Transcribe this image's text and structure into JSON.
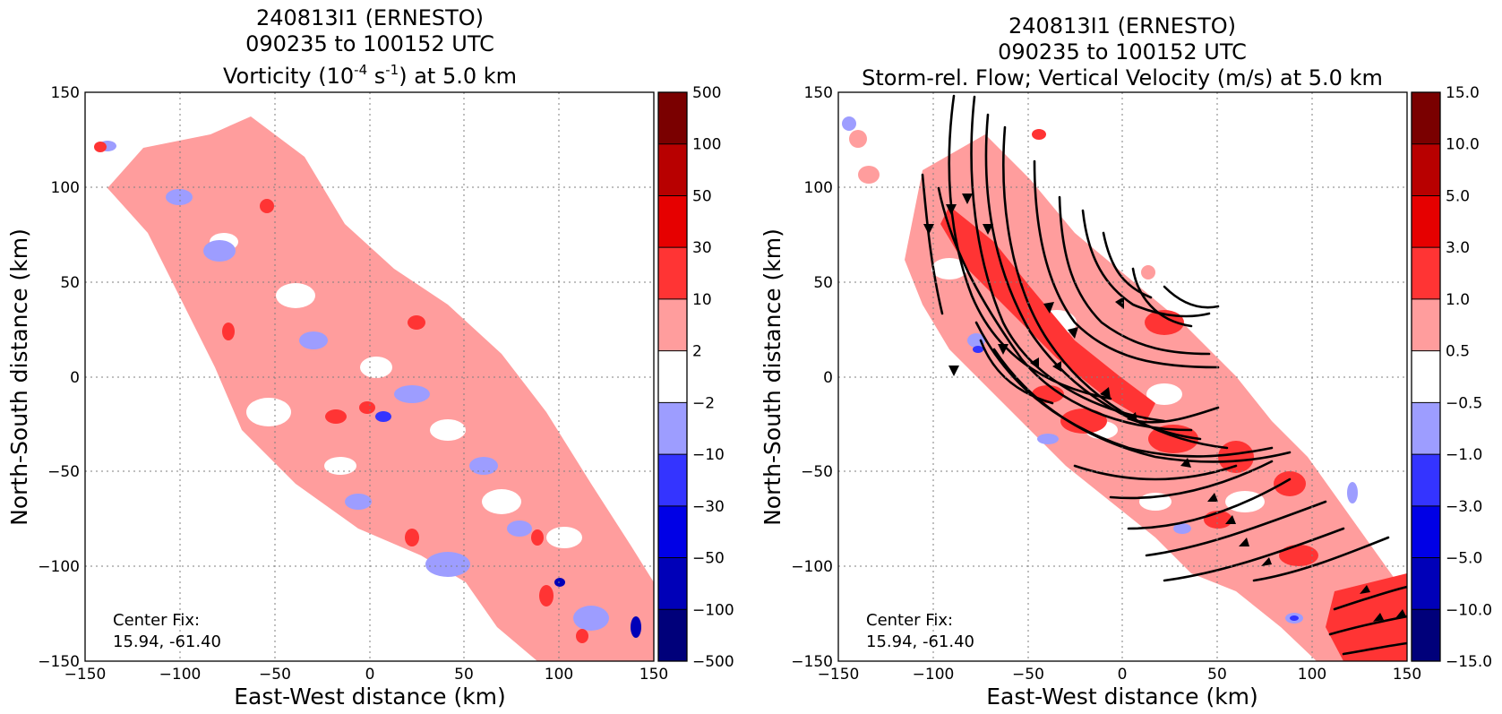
{
  "chart_data": [
    {
      "type": "heatmap",
      "title_lines": [
        "240813I1 (ERNESTO)",
        "090235 to 100152 UTC"
      ],
      "title_var": {
        "pre": "Vorticity (10",
        "sup1": "-4",
        "mid": " s",
        "sup2": "-1",
        "post": ") at 5.0 km"
      },
      "xlabel": "East-West distance (km)",
      "ylabel": "North-South distance (km)",
      "xlim": [
        -150,
        150
      ],
      "ylim": [
        -150,
        150
      ],
      "xticks": [
        "−150",
        "−100",
        "−50",
        "0",
        "50",
        "100",
        "150"
      ],
      "yticks": [
        "150",
        "100",
        "50",
        "0",
        "−50",
        "−100",
        "−150"
      ],
      "grid": true,
      "colorbar": {
        "labels": [
          "500",
          "100",
          "50",
          "30",
          "10",
          "2",
          "−2",
          "−10",
          "−30",
          "−50",
          "−100",
          "−500"
        ],
        "colors": [
          "#7a0000",
          "#b80000",
          "#e60000",
          "#ff3434",
          "#ff9d9d",
          "#ffffff",
          "#9d9dff",
          "#3434ff",
          "#0000e6",
          "#0000b8",
          "#00007a"
        ]
      },
      "annotation": [
        "Center Fix:",
        "15.94, -61.40"
      ]
    },
    {
      "type": "heatmap",
      "title_lines": [
        "240813I1 (ERNESTO)",
        "090235 to 100152 UTC",
        "Storm-rel. Flow; Vertical Velocity (m/s) at 5.0 km"
      ],
      "xlabel": "East-West distance (km)",
      "ylabel": "North-South distance (km)",
      "xlim": [
        -150,
        150
      ],
      "ylim": [
        -150,
        150
      ],
      "xticks": [
        "−150",
        "−100",
        "−50",
        "0",
        "50",
        "100",
        "150"
      ],
      "yticks": [
        "150",
        "100",
        "50",
        "0",
        "−50",
        "−100",
        "−150"
      ],
      "grid": true,
      "colorbar": {
        "labels": [
          "15.0",
          "10.0",
          "5.0",
          "3.0",
          "1.0",
          "0.5",
          "−0.5",
          "−1.0",
          "−3.0",
          "−5.0",
          "−10.0",
          "−15.0"
        ],
        "colors": [
          "#7a0000",
          "#b80000",
          "#e60000",
          "#ff3434",
          "#ff9d9d",
          "#ffffff",
          "#9d9dff",
          "#3434ff",
          "#0000e6",
          "#0000b8",
          "#00007a"
        ]
      },
      "annotation": [
        "Center Fix:",
        "15.94, -61.40"
      ]
    }
  ]
}
